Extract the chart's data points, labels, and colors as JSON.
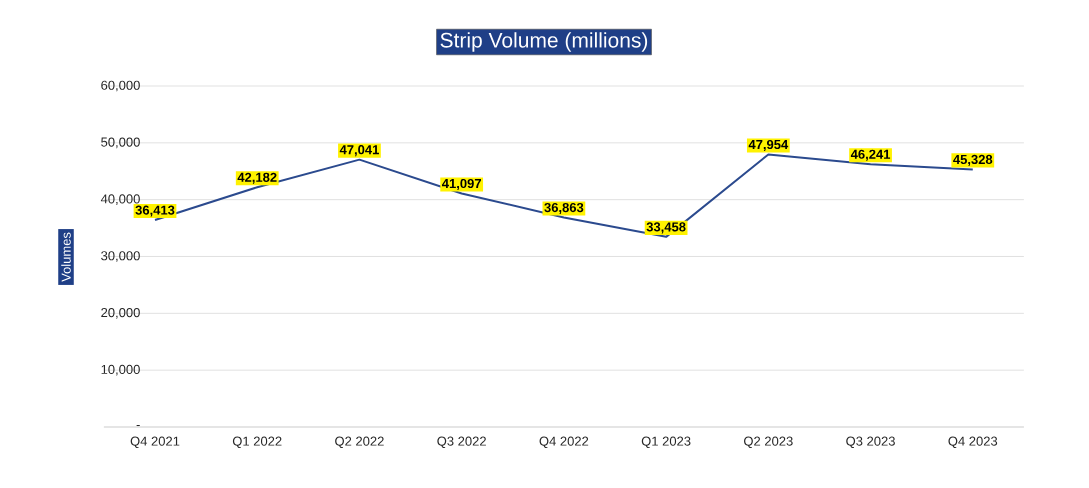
{
  "chart_data": {
    "type": "line",
    "title": "Strip Volume (millions)",
    "ylabel": "Volumes",
    "categories": [
      "Q4 2021",
      "Q1 2022",
      "Q2 2022",
      "Q3 2022",
      "Q4 2022",
      "Q1 2023",
      "Q2 2023",
      "Q3 2023",
      "Q4 2023"
    ],
    "values": [
      36413,
      42182,
      47041,
      41097,
      36863,
      33458,
      47954,
      46241,
      45328
    ],
    "value_labels": [
      "36,413",
      "42,182",
      "47,041",
      "41,097",
      "36,863",
      "33,458",
      "47,954",
      "46,241",
      "45,328"
    ],
    "color": "#2b4a8e",
    "ylim": [
      0,
      60000
    ],
    "yticks": [
      {
        "value": 0,
        "label": "-"
      },
      {
        "value": 10000,
        "label": "10,000"
      },
      {
        "value": 20000,
        "label": "20,000"
      },
      {
        "value": 30000,
        "label": "30,000"
      },
      {
        "value": 40000,
        "label": "40,000"
      },
      {
        "value": 50000,
        "label": "50,000"
      },
      {
        "value": 60000,
        "label": "60,000"
      }
    ],
    "grid": "y",
    "marker": "none"
  }
}
